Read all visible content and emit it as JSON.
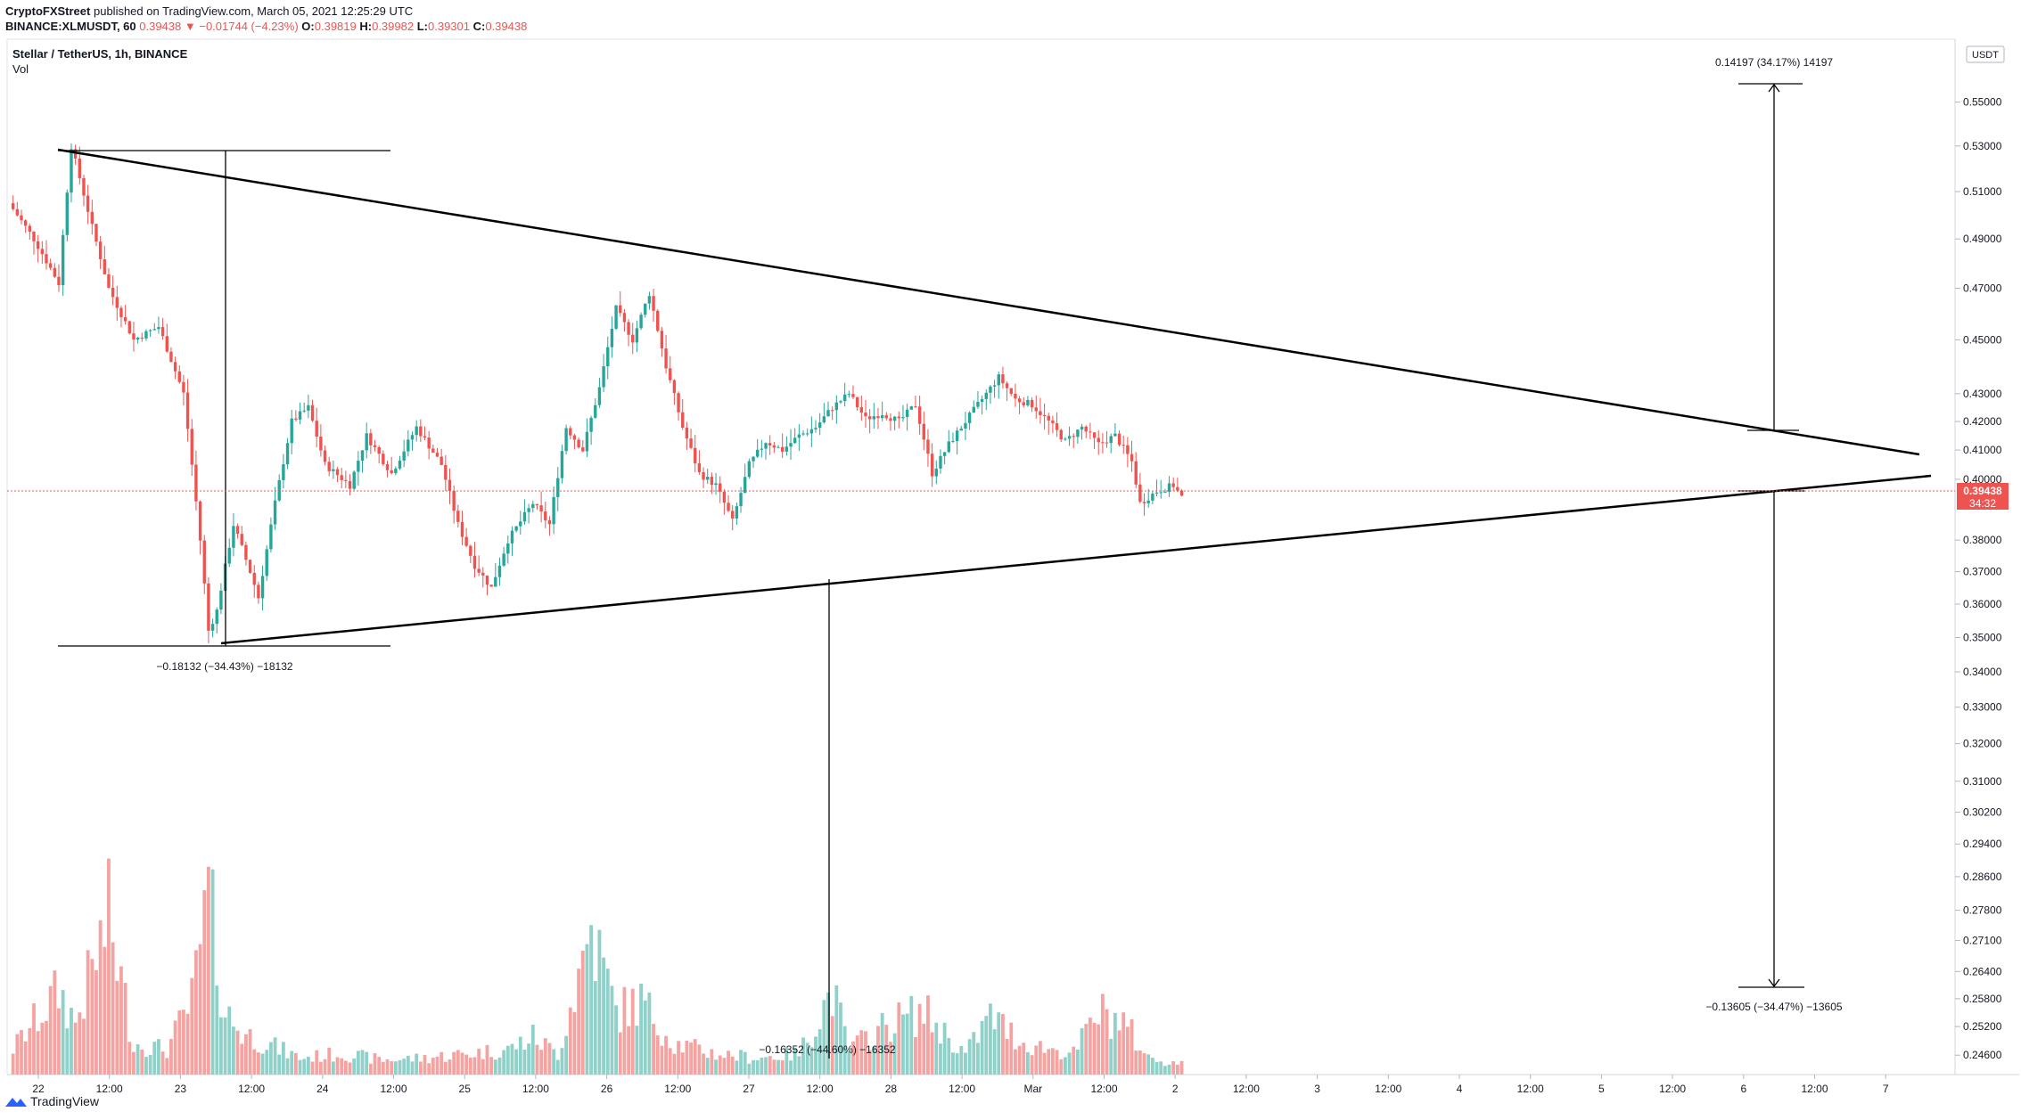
{
  "header": {
    "publisher": "CryptoFXStreet",
    "published_text": "published on TradingView.com, March 05, 2021 12:25:29 UTC",
    "symbol_full": "BINANCE:XLMUSDT, 60",
    "last": "0.39438",
    "change": "▼ −0.01744 (−4.23%)",
    "o_label": "O:",
    "o": "0.39819",
    "h_label": "H:",
    "h": "0.39982",
    "l_label": "L:",
    "l": "0.39301",
    "c_label": "C:",
    "c": "0.39438"
  },
  "symbol_line": "Stellar / TetherUS, 1h, BINANCE",
  "vol_label": "Vol",
  "footer": {
    "brand": "TradingView"
  },
  "colors": {
    "up": "#26a69a",
    "down": "#ef5350",
    "up_vol": "#8fd0c8",
    "down_vol": "#f4a3a1",
    "pattern_line": "#000000",
    "price_tag": "#ef5350"
  },
  "chart_data": {
    "type": "candlestick",
    "title": "Stellar / TetherUS, 1h, BINANCE",
    "currency": "USDT",
    "price_scale": "log",
    "ylim": [
      0.242,
      0.58
    ],
    "y_ticks": [
      "0.55000",
      "0.53000",
      "0.51000",
      "0.49000",
      "0.47000",
      "0.45000",
      "0.43000",
      "0.42000",
      "0.41000",
      "0.40000",
      "0.38000",
      "0.37000",
      "0.36000",
      "0.35000",
      "0.34000",
      "0.33000",
      "0.32000",
      "0.31000",
      "0.30200",
      "0.29400",
      "0.28600",
      "0.27800",
      "0.27100",
      "0.26400",
      "0.25800",
      "0.25200",
      "0.24600"
    ],
    "x_ticks": [
      "22",
      "12:00",
      "23",
      "12:00",
      "24",
      "12:00",
      "25",
      "12:00",
      "26",
      "12:00",
      "27",
      "12:00",
      "28",
      "12:00",
      "Mar",
      "12:00",
      "2",
      "12:00",
      "3",
      "12:00",
      "4",
      "12:00",
      "5",
      "12:00",
      "6",
      "12:00",
      "7"
    ],
    "last_price": "0.39438",
    "countdown": "34:32",
    "price_path": [
      [
        0,
        0.505
      ],
      [
        6,
        0.49
      ],
      [
        12,
        0.472
      ],
      [
        15,
        0.53
      ],
      [
        20,
        0.495
      ],
      [
        24,
        0.47
      ],
      [
        30,
        0.45
      ],
      [
        36,
        0.455
      ],
      [
        42,
        0.43
      ],
      [
        46,
        0.38
      ],
      [
        48,
        0.352
      ],
      [
        50,
        0.358
      ],
      [
        54,
        0.385
      ],
      [
        58,
        0.37
      ],
      [
        60,
        0.362
      ],
      [
        64,
        0.392
      ],
      [
        68,
        0.42
      ],
      [
        72,
        0.425
      ],
      [
        76,
        0.405
      ],
      [
        82,
        0.398
      ],
      [
        86,
        0.415
      ],
      [
        92,
        0.402
      ],
      [
        98,
        0.418
      ],
      [
        104,
        0.405
      ],
      [
        108,
        0.385
      ],
      [
        112,
        0.372
      ],
      [
        116,
        0.365
      ],
      [
        120,
        0.38
      ],
      [
        126,
        0.392
      ],
      [
        130,
        0.385
      ],
      [
        134,
        0.418
      ],
      [
        138,
        0.41
      ],
      [
        142,
        0.432
      ],
      [
        146,
        0.462
      ],
      [
        150,
        0.45
      ],
      [
        154,
        0.468
      ],
      [
        158,
        0.44
      ],
      [
        162,
        0.418
      ],
      [
        166,
        0.402
      ],
      [
        170,
        0.398
      ],
      [
        174,
        0.386
      ],
      [
        178,
        0.405
      ],
      [
        182,
        0.413
      ],
      [
        186,
        0.41
      ],
      [
        190,
        0.415
      ],
      [
        194,
        0.418
      ],
      [
        198,
        0.425
      ],
      [
        202,
        0.43
      ],
      [
        206,
        0.421
      ],
      [
        210,
        0.423
      ],
      [
        214,
        0.42
      ],
      [
        218,
        0.426
      ],
      [
        222,
        0.402
      ],
      [
        226,
        0.412
      ],
      [
        230,
        0.42
      ],
      [
        234,
        0.428
      ],
      [
        238,
        0.436
      ],
      [
        242,
        0.428
      ],
      [
        246,
        0.426
      ],
      [
        250,
        0.42
      ],
      [
        254,
        0.413
      ],
      [
        258,
        0.418
      ],
      [
        262,
        0.412
      ],
      [
        266,
        0.415
      ],
      [
        270,
        0.406
      ],
      [
        272,
        0.392
      ],
      [
        276,
        0.396
      ],
      [
        280,
        0.398
      ],
      [
        282,
        0.394
      ]
    ],
    "volume_path": [
      [
        0,
        0.1
      ],
      [
        12,
        0.4
      ],
      [
        16,
        0.25
      ],
      [
        24,
        0.75
      ],
      [
        30,
        0.15
      ],
      [
        38,
        0.12
      ],
      [
        44,
        0.35
      ],
      [
        48,
        0.85
      ],
      [
        52,
        0.3
      ],
      [
        56,
        0.2
      ],
      [
        62,
        0.15
      ],
      [
        70,
        0.08
      ],
      [
        80,
        0.1
      ],
      [
        90,
        0.07
      ],
      [
        100,
        0.08
      ],
      [
        110,
        0.1
      ],
      [
        120,
        0.12
      ],
      [
        126,
        0.18
      ],
      [
        132,
        0.1
      ],
      [
        138,
        0.55
      ],
      [
        140,
        0.7
      ],
      [
        146,
        0.3
      ],
      [
        152,
        0.35
      ],
      [
        160,
        0.15
      ],
      [
        170,
        0.1
      ],
      [
        180,
        0.08
      ],
      [
        190,
        0.1
      ],
      [
        198,
        0.4
      ],
      [
        202,
        0.12
      ],
      [
        212,
        0.25
      ],
      [
        220,
        0.3
      ],
      [
        230,
        0.1
      ],
      [
        236,
        0.28
      ],
      [
        244,
        0.15
      ],
      [
        256,
        0.1
      ],
      [
        262,
        0.3
      ],
      [
        268,
        0.25
      ],
      [
        274,
        0.08
      ],
      [
        282,
        0.05
      ]
    ],
    "measures": [
      {
        "label": "−0.18132 (−34.43%) −18132"
      },
      {
        "label": "−0.16352 (−44.60%) −16352"
      },
      {
        "label": "0.14197 (34.17%) 14197"
      },
      {
        "label": "−0.13605 (−34.47%) −13605"
      }
    ]
  }
}
